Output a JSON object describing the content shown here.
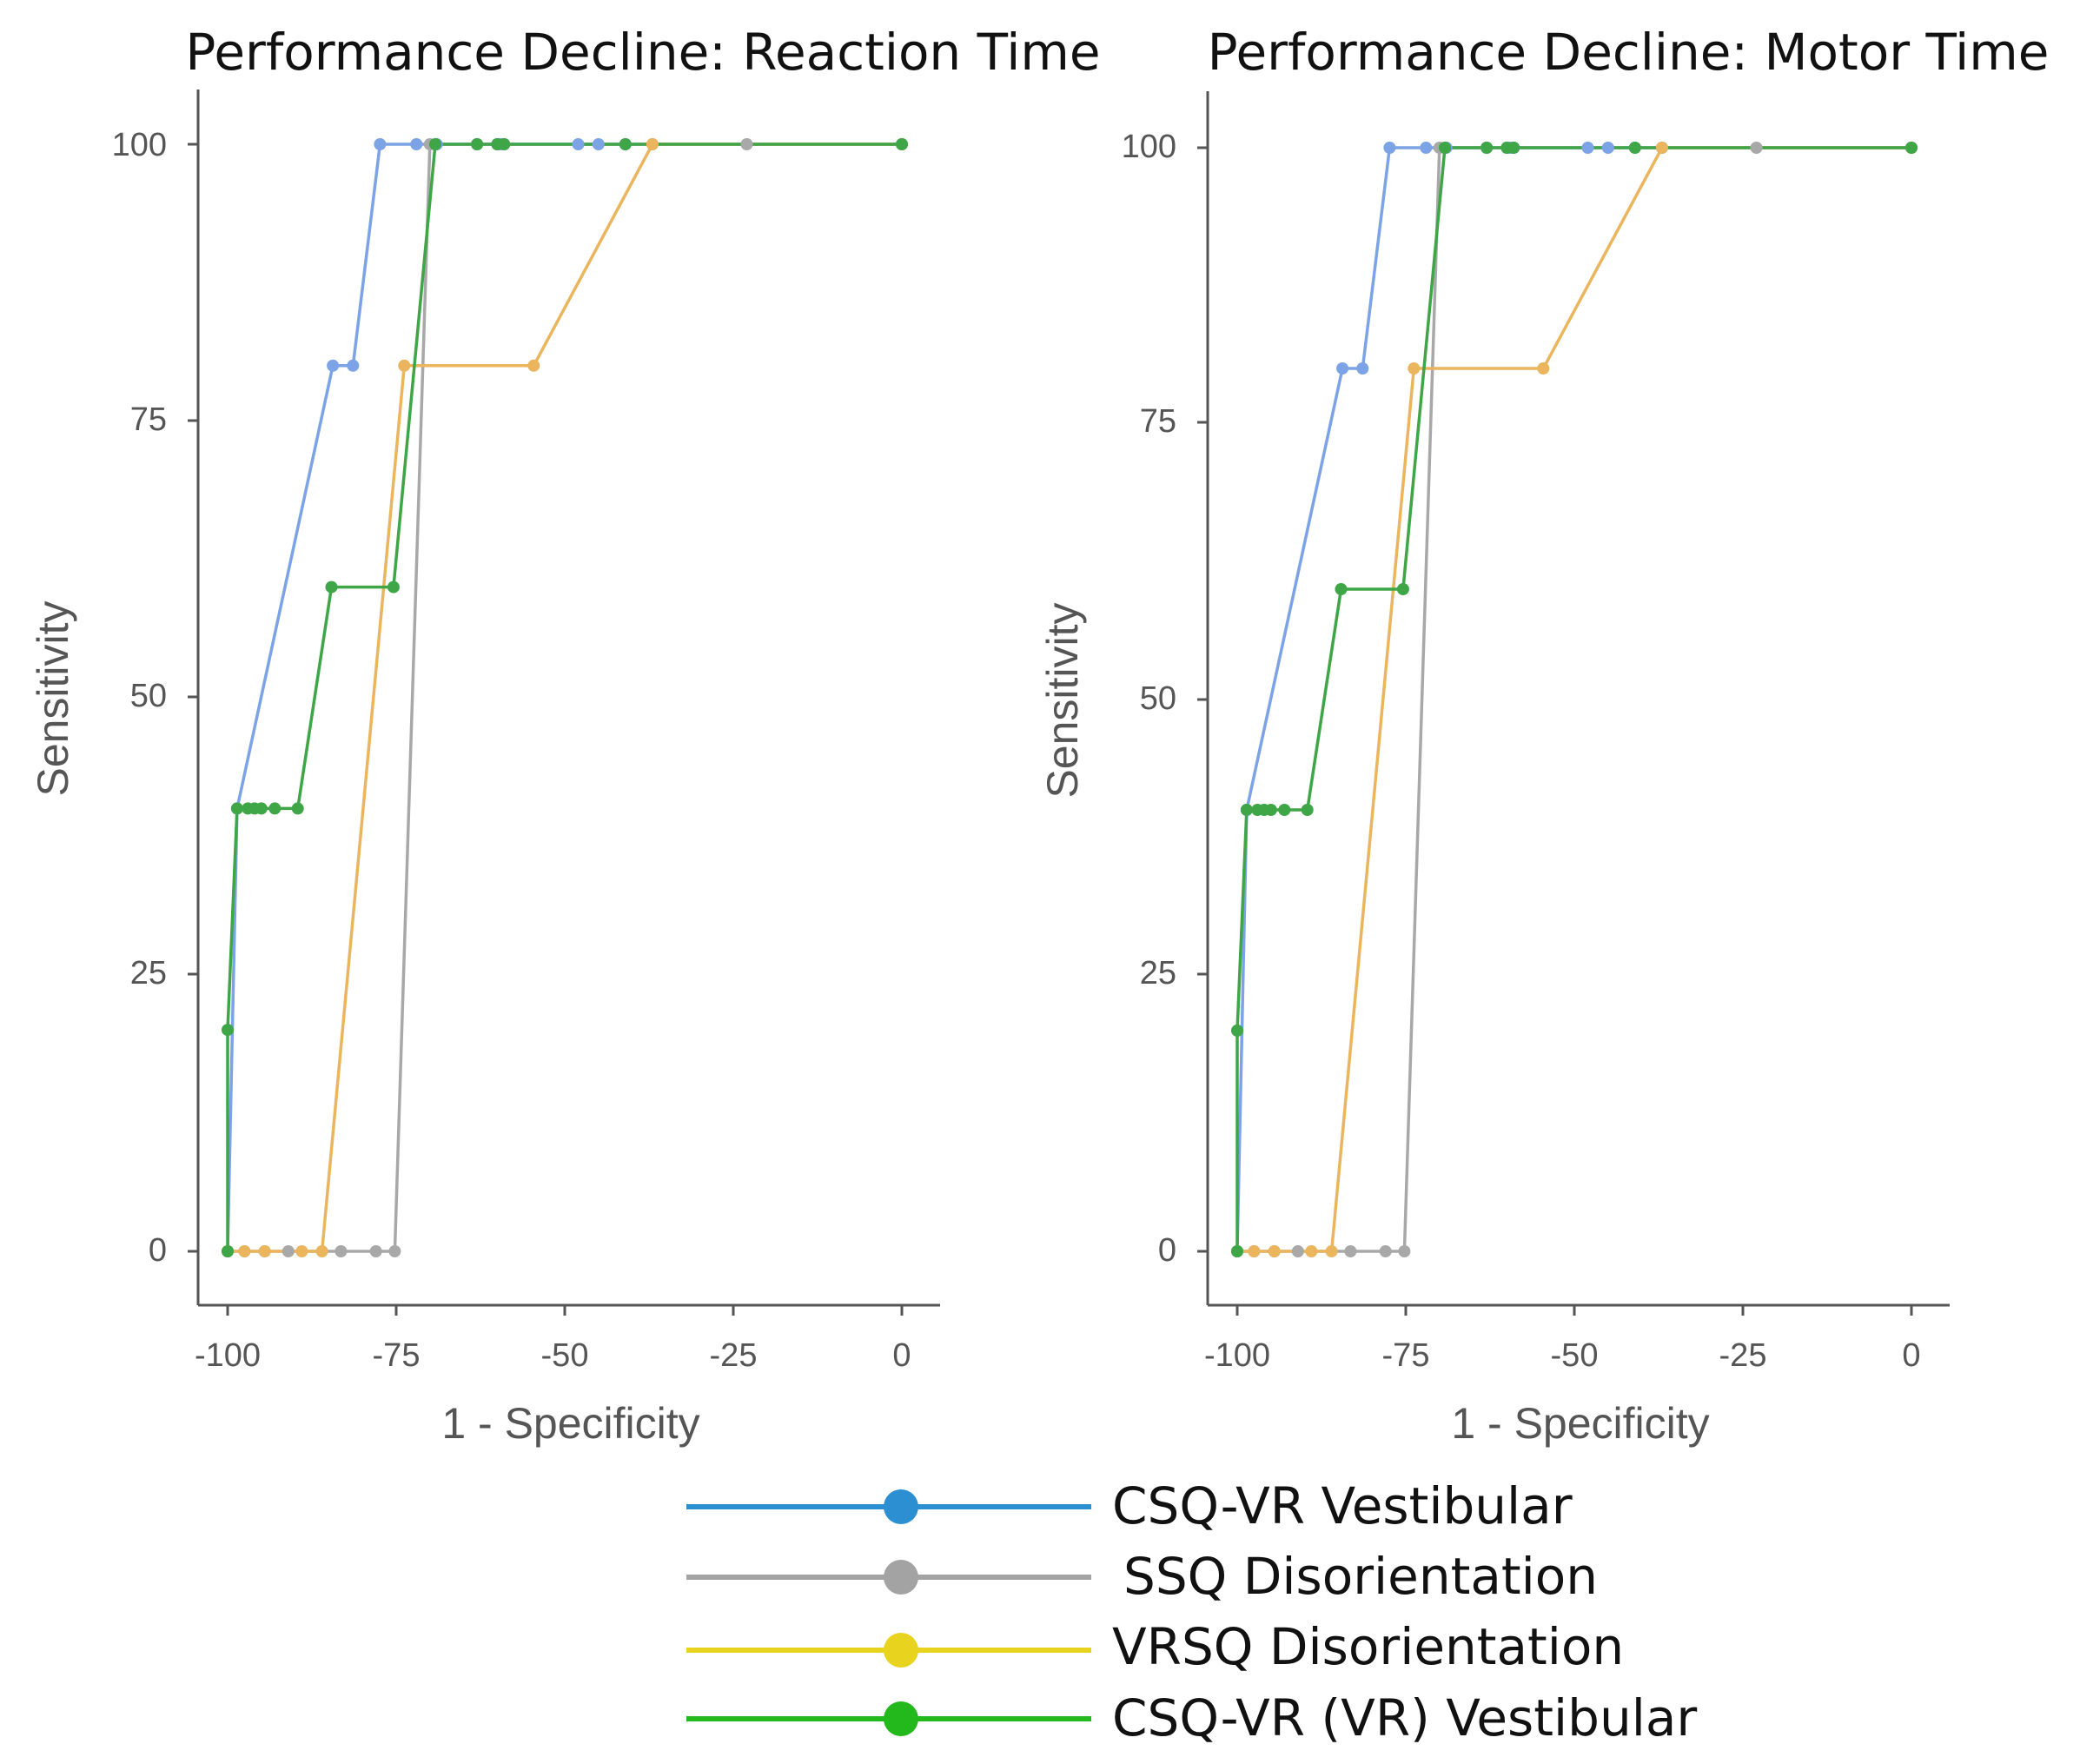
{
  "chart_data": [
    {
      "type": "line",
      "title": "Performance Decline: Reaction Time",
      "xlabel": "1 - Specificity",
      "ylabel": "Sensitivity",
      "xlim": [
        -100,
        0
      ],
      "ylim": [
        0,
        100
      ],
      "xticks": [
        "-100",
        "-75",
        "-50",
        "-25",
        "0"
      ],
      "yticks": [
        "0",
        "25",
        "50",
        "75",
        "100"
      ],
      "grid": false,
      "series": [
        {
          "name": "CSQ-VR Vestibular",
          "color": "#7ba3e6",
          "x": [
            -100,
            -98.6,
            -84.4,
            -81.4,
            -77.4,
            -72,
            -69,
            -63,
            -60,
            -59.5,
            -59,
            -48,
            -45,
            -41,
            -37,
            0
          ],
          "y": [
            0,
            40,
            80,
            80,
            100,
            100,
            100,
            100,
            100,
            100,
            100,
            100,
            100,
            100,
            100,
            100
          ]
        },
        {
          "name": "SSQ Disorientation",
          "color": "#a8a8a8",
          "x": [
            -100,
            -97.5,
            -94.5,
            -91,
            -83.2,
            -78,
            -75.2,
            -70,
            -63,
            -60,
            -23,
            0
          ],
          "y": [
            0,
            0,
            0,
            0,
            0,
            0,
            0,
            100,
            100,
            100,
            100,
            100
          ]
        },
        {
          "name": "VRSQ Disorientation",
          "color": "#ebb55e",
          "x": [
            -100,
            -97.5,
            -94.5,
            -89,
            -86,
            -73.8,
            -54.6,
            -37,
            0
          ],
          "y": [
            0,
            0,
            0,
            0,
            0,
            80,
            80,
            100,
            100
          ]
        },
        {
          "name": "CSQ-VR (VR) Vestibular",
          "color": "#3ea646",
          "x": [
            -100,
            -100,
            -98.6,
            -97,
            -96,
            -95,
            -93,
            -89.6,
            -84.6,
            -75.4,
            -69.2,
            -63,
            -60,
            -59,
            -41,
            0
          ],
          "y": [
            0,
            20,
            40,
            40,
            40,
            40,
            40,
            40,
            60,
            60,
            100,
            100,
            100,
            100,
            100,
            100
          ]
        }
      ]
    },
    {
      "type": "line",
      "title": "Performance Decline: Motor Time",
      "xlabel": "1 - Specificity",
      "ylabel": "Sensitivity",
      "xlim": [
        -100,
        0
      ],
      "ylim": [
        0,
        100
      ],
      "xticks": [
        "-100",
        "-75",
        "-50",
        "-25",
        "0"
      ],
      "yticks": [
        "0",
        "25",
        "50",
        "75",
        "100"
      ],
      "grid": false,
      "series": [
        {
          "name": "CSQ-VR Vestibular",
          "color": "#7ba3e6",
          "x": [
            -100,
            -98.6,
            -84.4,
            -81.4,
            -77.4,
            -72,
            -69,
            -63,
            -60,
            -59.5,
            -59,
            -48,
            -45,
            -41,
            -37,
            0
          ],
          "y": [
            0,
            40,
            80,
            80,
            100,
            100,
            100,
            100,
            100,
            100,
            100,
            100,
            100,
            100,
            100,
            100
          ]
        },
        {
          "name": "SSQ Disorientation",
          "color": "#a8a8a8",
          "x": [
            -100,
            -97.5,
            -94.5,
            -91,
            -83.2,
            -78,
            -75.2,
            -70,
            -63,
            -60,
            -23,
            0
          ],
          "y": [
            0,
            0,
            0,
            0,
            0,
            0,
            0,
            100,
            100,
            100,
            100,
            100
          ]
        },
        {
          "name": "VRSQ Disorientation",
          "color": "#ebb55e",
          "x": [
            -100,
            -97.5,
            -94.5,
            -89,
            -86,
            -73.8,
            -54.6,
            -37,
            0
          ],
          "y": [
            0,
            0,
            0,
            0,
            0,
            80,
            80,
            100,
            100
          ]
        },
        {
          "name": "CSQ-VR (VR) Vestibular",
          "color": "#3ea646",
          "x": [
            -100,
            -100,
            -98.6,
            -97,
            -96,
            -95,
            -93,
            -89.6,
            -84.6,
            -75.4,
            -69.2,
            -63,
            -60,
            -59,
            -41,
            0
          ],
          "y": [
            0,
            20,
            40,
            40,
            40,
            40,
            40,
            40,
            60,
            60,
            100,
            100,
            100,
            100,
            100,
            100
          ]
        }
      ]
    }
  ],
  "legend": {
    "items": [
      {
        "label": "CSQ-VR Vestibular",
        "color": "#2b8fd1"
      },
      {
        "label": "SSQ Disorientation",
        "color": "#a3a3a3"
      },
      {
        "label": "VRSQ Disorientation",
        "color": "#e8d41f"
      },
      {
        "label": "CSQ-VR (VR) Vestibular",
        "color": "#23b81c"
      }
    ]
  }
}
